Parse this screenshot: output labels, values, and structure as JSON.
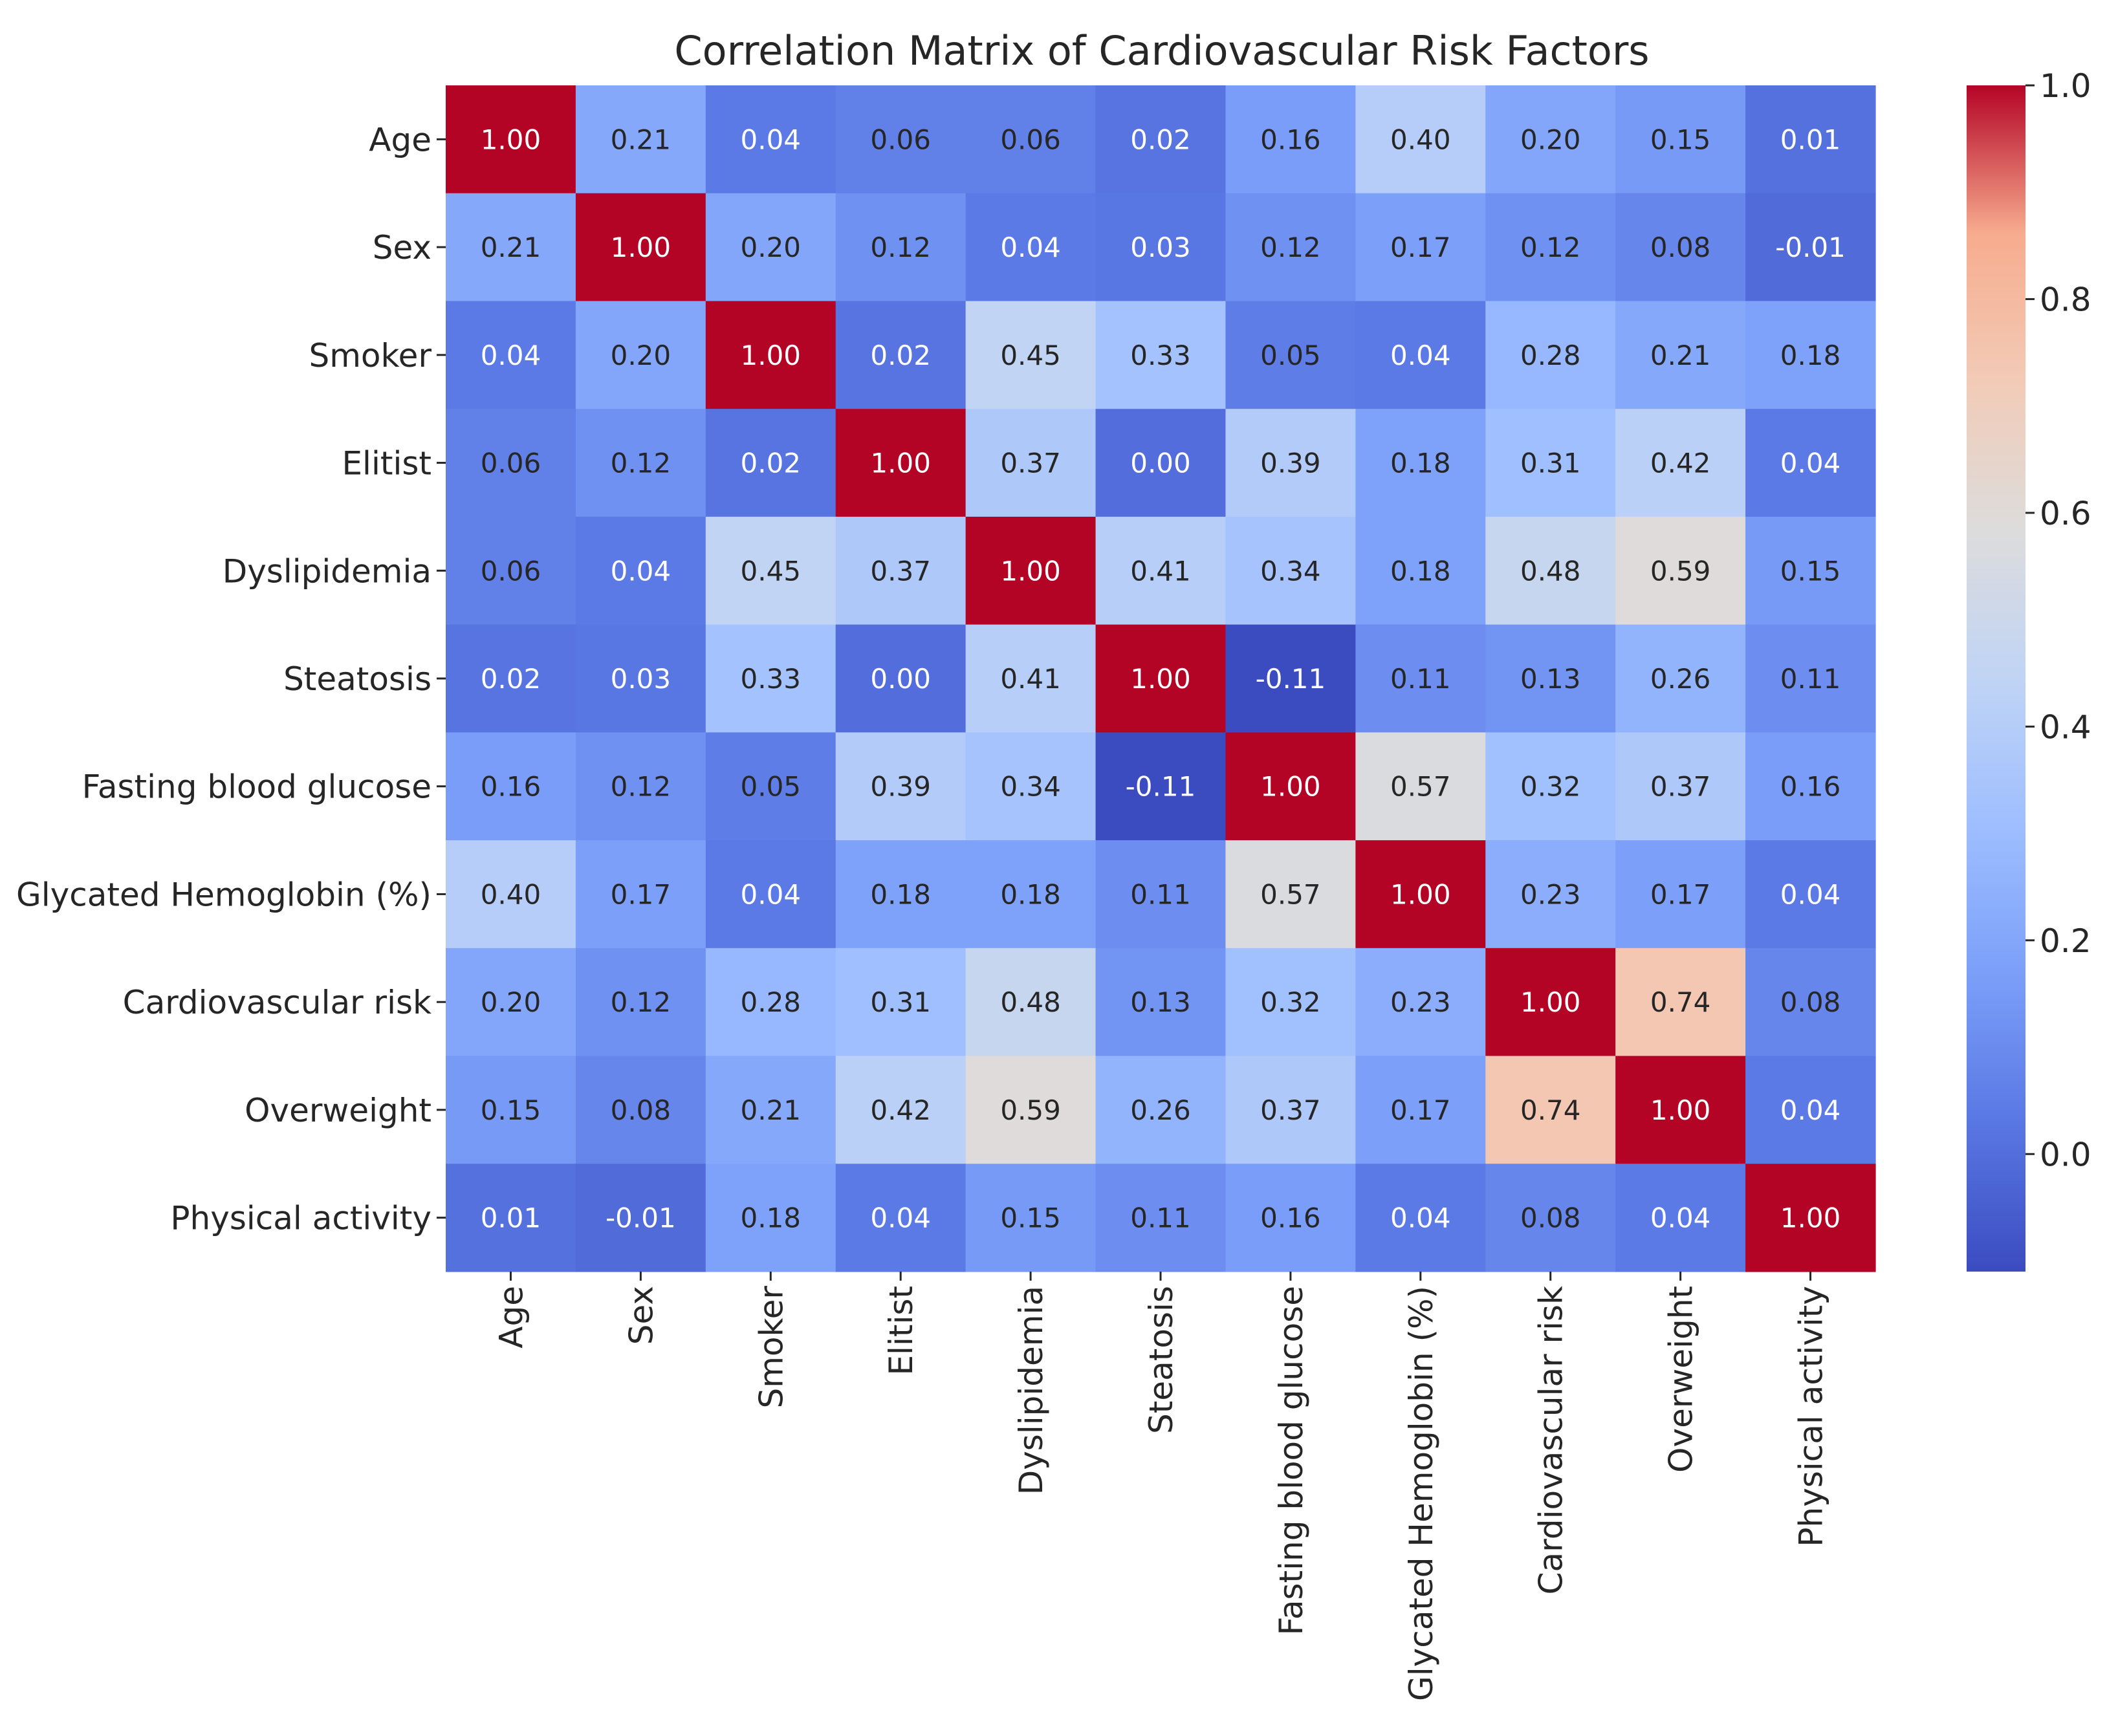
{
  "chart_data": {
    "type": "heatmap",
    "title": "Correlation Matrix of Cardiovascular Risk Factors",
    "labels": [
      "Age",
      "Sex",
      "Smoker",
      "Elitist",
      "Dyslipidemia",
      "Steatosis",
      "Fasting blood glucose",
      "Glycated Hemoglobin (%)",
      "Cardiovascular risk",
      "Overweight",
      "Physical activity"
    ],
    "matrix": [
      [
        1.0,
        0.21,
        0.04,
        0.06,
        0.06,
        0.02,
        0.16,
        0.4,
        0.2,
        0.15,
        0.01
      ],
      [
        0.21,
        1.0,
        0.2,
        0.12,
        0.04,
        0.03,
        0.12,
        0.17,
        0.12,
        0.08,
        -0.01
      ],
      [
        0.04,
        0.2,
        1.0,
        0.02,
        0.45,
        0.33,
        0.05,
        0.04,
        0.28,
        0.21,
        0.18
      ],
      [
        0.06,
        0.12,
        0.02,
        1.0,
        0.37,
        0.0,
        0.39,
        0.18,
        0.31,
        0.42,
        0.04
      ],
      [
        0.06,
        0.04,
        0.45,
        0.37,
        1.0,
        0.41,
        0.34,
        0.18,
        0.48,
        0.59,
        0.15
      ],
      [
        0.02,
        0.03,
        0.33,
        0.0,
        0.41,
        1.0,
        -0.11,
        0.11,
        0.13,
        0.26,
        0.11
      ],
      [
        0.16,
        0.12,
        0.05,
        0.39,
        0.34,
        -0.11,
        1.0,
        0.57,
        0.32,
        0.37,
        0.16
      ],
      [
        0.4,
        0.17,
        0.04,
        0.18,
        0.18,
        0.11,
        0.57,
        1.0,
        0.23,
        0.17,
        0.04
      ],
      [
        0.2,
        0.12,
        0.28,
        0.31,
        0.48,
        0.13,
        0.32,
        0.23,
        1.0,
        0.74,
        0.08
      ],
      [
        0.15,
        0.08,
        0.21,
        0.42,
        0.59,
        0.26,
        0.37,
        0.17,
        0.74,
        1.0,
        0.04
      ],
      [
        0.01,
        -0.01,
        0.18,
        0.04,
        0.15,
        0.11,
        0.16,
        0.04,
        0.08,
        0.04,
        1.0
      ]
    ],
    "value_range": [
      -0.11,
      1.0
    ],
    "colormap": "coolwarm",
    "colorbar": {
      "ticks": [
        0.0,
        0.2,
        0.4,
        0.6,
        0.8,
        1.0
      ],
      "tick_labels": [
        "0.0",
        "0.2",
        "0.4",
        "0.6",
        "0.8",
        "1.0"
      ]
    },
    "annotation_format": "2 decimals"
  }
}
